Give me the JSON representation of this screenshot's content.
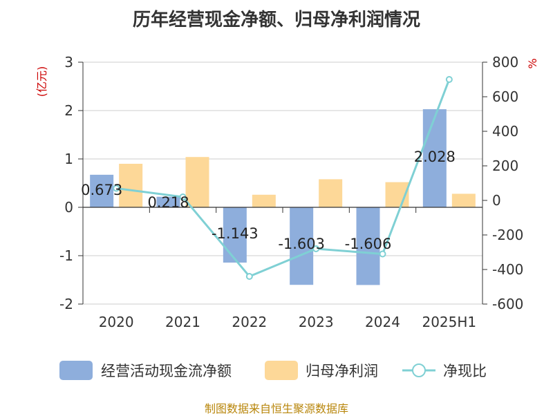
{
  "title": "历年经营现金净额、归母净利润情况",
  "source_note": "制图数据来自恒生聚源数据库",
  "colors": {
    "cash_flow": "#8eaedc",
    "net_profit": "#fdd898",
    "ratio_line": "#7fd0d4",
    "axis": "#333333",
    "grid": "#cccccc",
    "unit_label": "#cc0000"
  },
  "chart_data": {
    "type": "bar",
    "title": "历年经营现金净额、归母净利润情况",
    "categories": [
      "2020",
      "2021",
      "2022",
      "2023",
      "2024",
      "2025H1"
    ],
    "ylabel": "(亿元)",
    "y2label": "%",
    "ylim": [
      -2,
      3
    ],
    "y2lim": [
      -600,
      800
    ],
    "yticks": [
      -2,
      -1,
      0,
      1,
      2,
      3
    ],
    "y2ticks": [
      -600,
      -400,
      -200,
      0,
      200,
      400,
      600,
      800
    ],
    "grid": true,
    "legend_position": "bottom",
    "series": [
      {
        "name": "经营活动现金流净额",
        "type": "bar",
        "axis": "left",
        "color": "#8eaedc",
        "values": [
          0.673,
          0.218,
          -1.143,
          -1.603,
          -1.606,
          2.028
        ],
        "labels": [
          "0.673",
          "0.218",
          "-1.143",
          "-1.603",
          "-1.606",
          "2.028"
        ]
      },
      {
        "name": "归母净利润",
        "type": "bar",
        "axis": "left",
        "color": "#fdd898",
        "values": [
          0.9,
          1.04,
          0.26,
          0.58,
          0.52,
          0.28
        ]
      },
      {
        "name": "净现比",
        "type": "line",
        "axis": "right",
        "color": "#7fd0d4",
        "values": [
          70,
          20,
          -440,
          -280,
          -310,
          700
        ]
      }
    ]
  }
}
